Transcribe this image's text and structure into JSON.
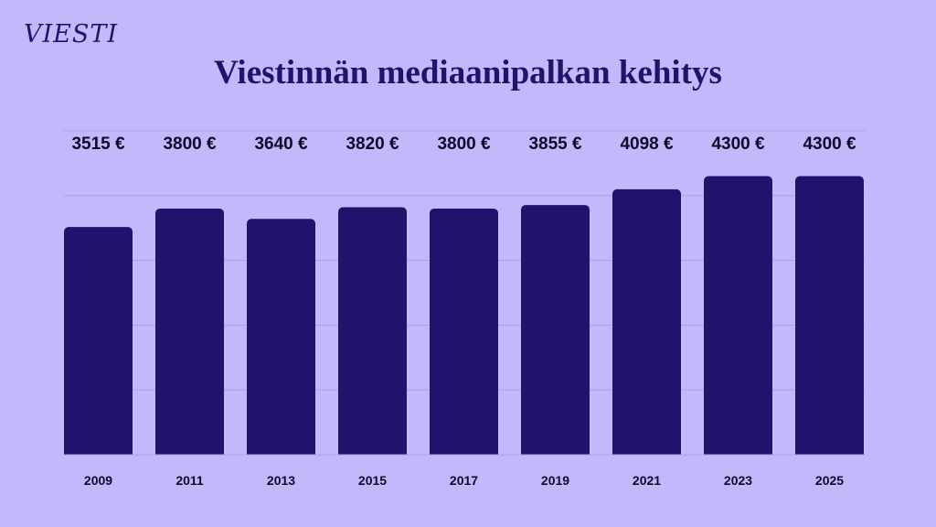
{
  "brand": {
    "logo_text": "VIESTI"
  },
  "colors": {
    "background": "#c1b9fc",
    "bar": "#23126b",
    "text": "#0f0a2a"
  },
  "chart_data": {
    "type": "bar",
    "title": "Viestinnän mediaanipalkan kehitys",
    "categories": [
      "2009",
      "2011",
      "2013",
      "2015",
      "2017",
      "2019",
      "2021",
      "2023",
      "2025"
    ],
    "values": [
      3515,
      3800,
      3640,
      3820,
      3800,
      3855,
      4098,
      4300,
      4300
    ],
    "value_labels": [
      "3515 €",
      "3800 €",
      "3640 €",
      "3820 €",
      "3800 €",
      "3855 €",
      "4098 €",
      "4300 €",
      "4300 €"
    ],
    "unit": "€",
    "xlabel": "",
    "ylabel": "",
    "ylim": [
      0,
      5000
    ],
    "grid": true,
    "legend": "none"
  }
}
